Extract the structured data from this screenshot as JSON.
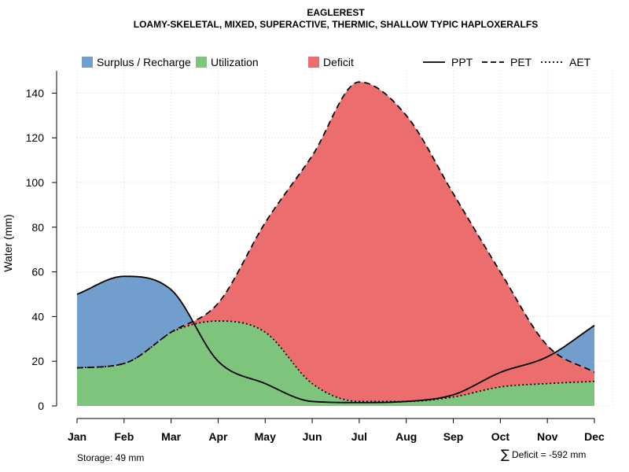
{
  "chart_data": {
    "type": "area",
    "title": "EAGLEREST",
    "subtitle": "LOAMY-SKELETAL, MIXED, SUPERACTIVE, THERMIC, SHALLOW TYPIC HAPLOXERALFS",
    "xlabel": "",
    "ylabel": "Water (mm)",
    "ylim": [
      0,
      150
    ],
    "yticks": [
      0,
      20,
      40,
      60,
      80,
      100,
      120,
      140
    ],
    "grid": true,
    "categories": [
      "Jan",
      "Feb",
      "Mar",
      "Apr",
      "May",
      "Jun",
      "Jul",
      "Aug",
      "Sep",
      "Oct",
      "Nov",
      "Dec"
    ],
    "series": [
      {
        "name": "PPT",
        "line": "solid",
        "values": [
          50,
          58,
          52,
          20,
          10,
          2,
          1.5,
          2,
          5,
          15,
          22,
          36
        ]
      },
      {
        "name": "PET",
        "line": "dashed",
        "values": [
          17,
          19,
          33,
          46,
          82,
          112,
          145,
          130,
          95,
          60,
          27,
          15
        ]
      },
      {
        "name": "AET",
        "line": "dotted",
        "values": [
          17,
          19,
          33,
          38,
          33,
          10,
          2,
          2,
          4,
          8.5,
          10,
          11
        ]
      }
    ],
    "legend": [
      {
        "name": "Surplus / Recharge",
        "kind": "fill",
        "color": "#729ECE"
      },
      {
        "name": "Utilization",
        "kind": "fill",
        "color": "#7FC47C"
      },
      {
        "name": "Deficit",
        "kind": "fill",
        "color": "#EC6D6D"
      },
      {
        "name": "PPT",
        "kind": "line",
        "dash": "solid"
      },
      {
        "name": "PET",
        "kind": "line",
        "dash": "dashed"
      },
      {
        "name": "AET",
        "kind": "line",
        "dash": "dotted"
      }
    ],
    "legend_position": "top",
    "annotations": {
      "storage": "Storage: 49 mm",
      "deficit_symbol": "∑",
      "deficit": "Deficit = -592 mm"
    }
  },
  "colors": {
    "surplus": "#729ECE",
    "utilization": "#7FC47C",
    "deficit": "#EC6D6D",
    "grid": "#d3d3d3",
    "line": "#000000"
  }
}
